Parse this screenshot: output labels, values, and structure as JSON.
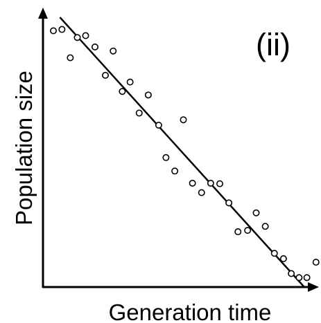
{
  "chart_data": {
    "type": "scatter",
    "panel_label": "(ii)",
    "xlabel": "Generation time",
    "ylabel": "Population size",
    "xlim": [
      0,
      100
    ],
    "ylim": [
      0,
      100
    ],
    "ticks_shown": false,
    "grid": false,
    "points": [
      [
        4,
        95
      ],
      [
        7.3,
        95.5
      ],
      [
        10.5,
        85
      ],
      [
        13.2,
        92.5
      ],
      [
        16.4,
        93.2
      ],
      [
        20,
        89
      ],
      [
        24,
        78.5
      ],
      [
        27,
        87.5
      ],
      [
        30.5,
        72.5
      ],
      [
        33.5,
        76
      ],
      [
        37,
        64.5
      ],
      [
        40.5,
        71.2
      ],
      [
        44.5,
        60
      ],
      [
        47.3,
        48
      ],
      [
        50.7,
        43
      ],
      [
        54,
        62
      ],
      [
        57.5,
        38.5
      ],
      [
        61,
        35
      ],
      [
        64.5,
        38.5
      ],
      [
        68,
        38.3
      ],
      [
        71.5,
        31.2
      ],
      [
        75,
        20.5
      ],
      [
        78.7,
        21
      ],
      [
        82,
        27.5
      ],
      [
        85.5,
        22.5
      ],
      [
        89,
        12.5
      ],
      [
        92.5,
        10.5
      ],
      [
        95.5,
        5
      ],
      [
        98.5,
        3.5
      ],
      [
        101.5,
        3.5
      ],
      [
        105,
        9.2
      ]
    ],
    "fit_line": {
      "x": [
        6.5,
        100.5
      ],
      "y": [
        100,
        0
      ]
    },
    "colors": {
      "points": "#000000",
      "line": "#000000",
      "axes": "#000000"
    }
  }
}
